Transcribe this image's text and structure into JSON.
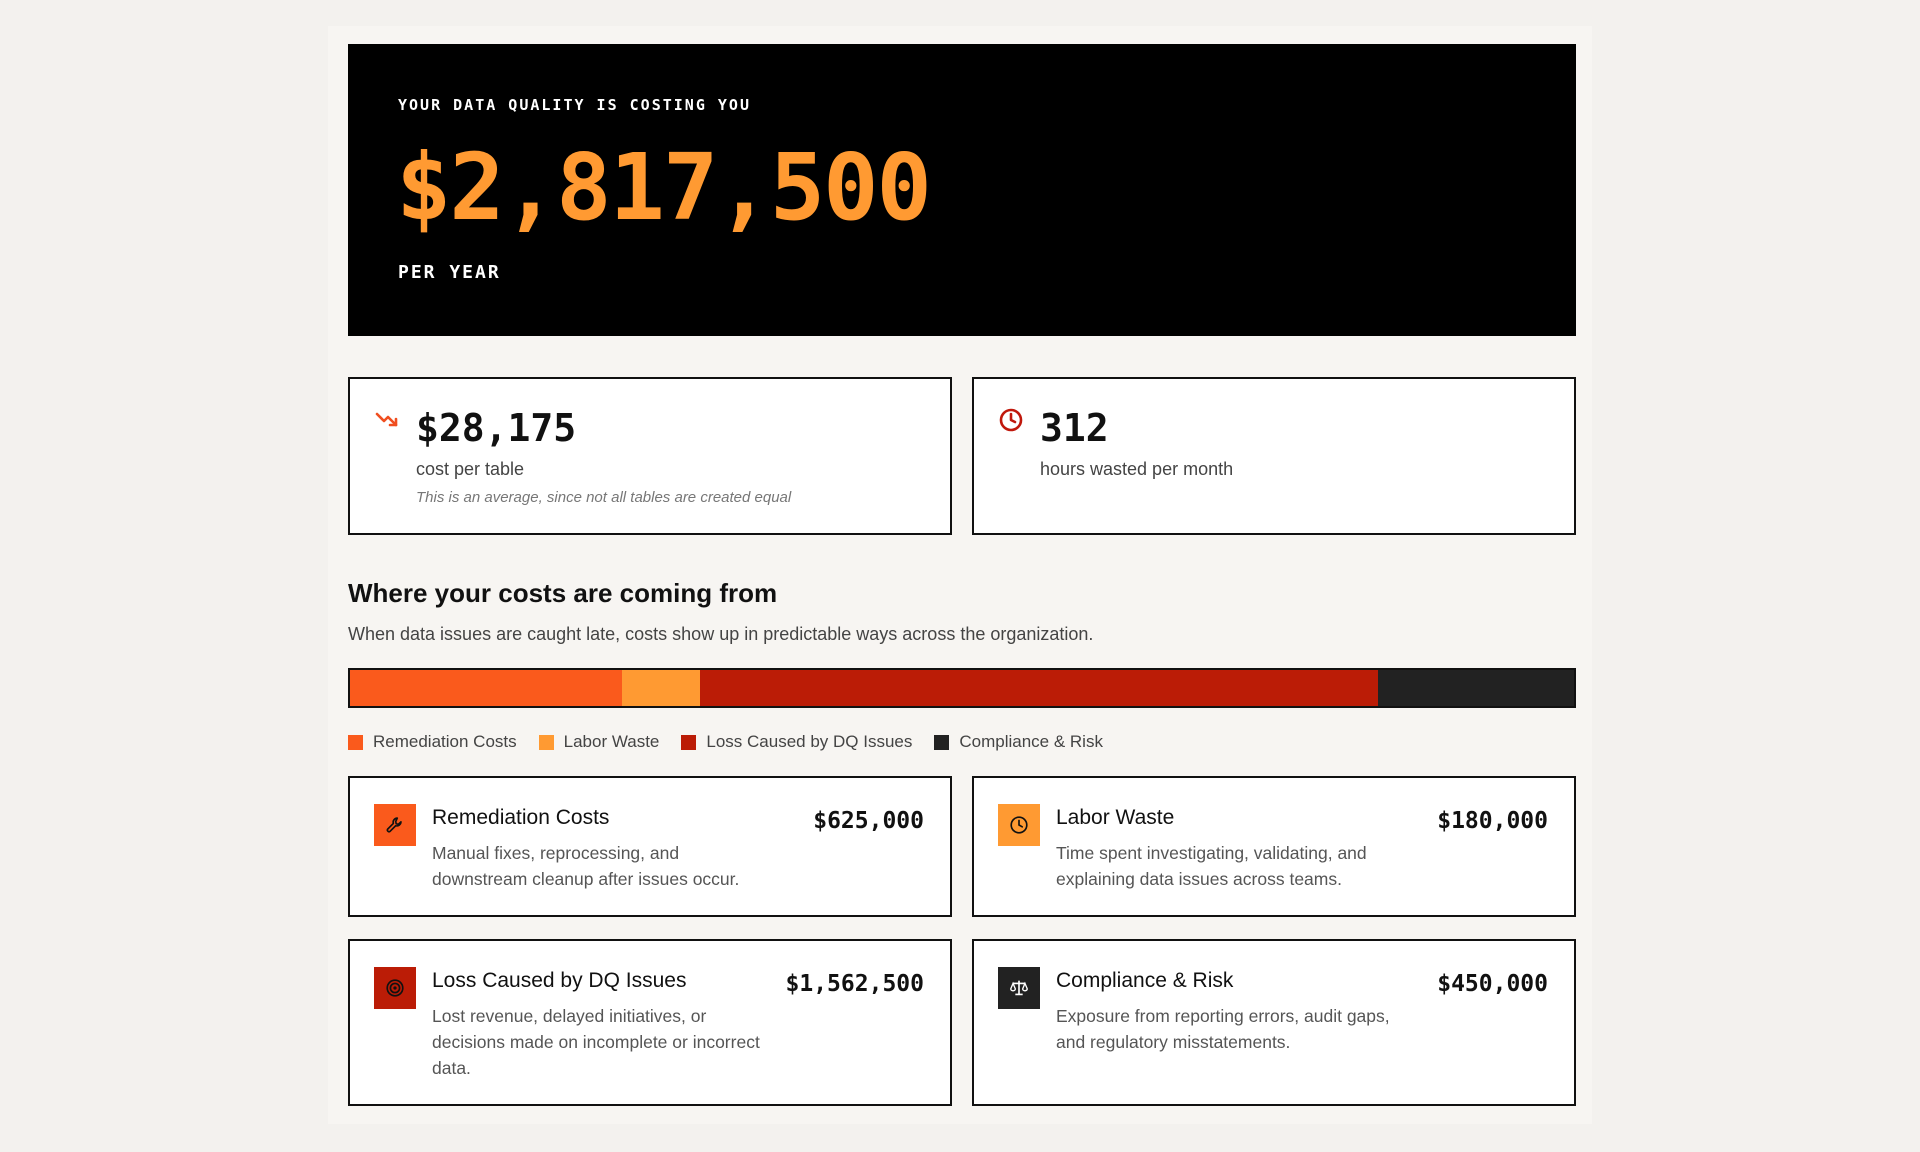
{
  "hero": {
    "eyebrow": "YOUR DATA QUALITY IS COSTING YOU",
    "amount": "$2,817,500",
    "period": "PER YEAR",
    "amount_color": "#ff9a32"
  },
  "stats": [
    {
      "icon": "trending-down-icon",
      "value": "$28,175",
      "label": "cost per table",
      "note": "This is an average, since not all tables are created equal",
      "icon_color": "#f04e1f"
    },
    {
      "icon": "clock-icon",
      "value": "312",
      "label": "hours wasted per month",
      "icon_color": "#c0180c"
    }
  ],
  "breakdown": {
    "title": "Where your costs are coming from",
    "description": "When data issues are caught late, costs show up in predictable ways across the organization.",
    "total": 2817500,
    "categories": [
      {
        "key": "remediation",
        "label": "Remediation Costs",
        "value": 625000,
        "amount": "$625,000",
        "color": "#fa5a1c",
        "icon": "wrench-icon",
        "description": "Manual fixes, reprocessing, and downstream cleanup after issues occur."
      },
      {
        "key": "labor",
        "label": "Labor Waste",
        "value": 180000,
        "amount": "$180,000",
        "color": "#ff9a32",
        "icon": "clock-icon",
        "description": "Time spent investigating, validating, and explaining data issues across teams."
      },
      {
        "key": "loss",
        "label": "Loss Caused by DQ Issues",
        "value": 1562500,
        "amount": "$1,562,500",
        "color": "#bb1c06",
        "icon": "target-icon",
        "description": "Lost revenue, delayed initiatives, or decisions made on incomplete or incorrect data."
      },
      {
        "key": "compliance",
        "label": "Compliance & Risk",
        "value": 450000,
        "amount": "$450,000",
        "color": "#222222",
        "icon": "scale-icon",
        "description": "Exposure from reporting errors, audit gaps, and regulatory misstatements."
      }
    ]
  }
}
